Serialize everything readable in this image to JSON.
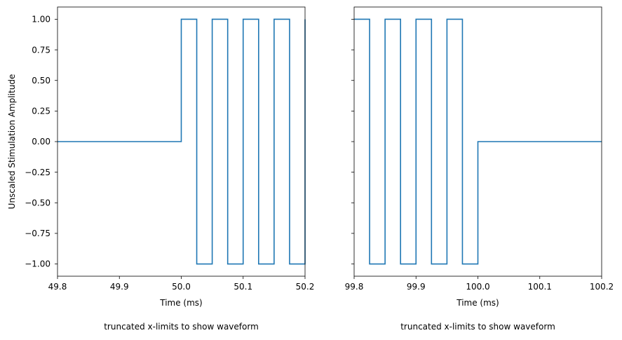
{
  "chart_data": [
    {
      "type": "line",
      "title": "",
      "xlabel": "Time (ms)",
      "ylabel": "Unscaled Stimulation Amplitude",
      "caption": "truncated x-limits to show waveform",
      "xlim": [
        49.8,
        50.2
      ],
      "ylim": [
        -1.1,
        1.1
      ],
      "xticks": [
        "49.8",
        "49.9",
        "50.0",
        "50.1",
        "50.2"
      ],
      "xtick_values": [
        49.8,
        49.9,
        50.0,
        50.1,
        50.2
      ],
      "yticks": [
        "1.00",
        "0.75",
        "0.50",
        "0.25",
        "0.00",
        "−0.25",
        "−0.50",
        "−0.75",
        "−1.00"
      ],
      "ytick_values": [
        1.0,
        0.75,
        0.5,
        0.25,
        0.0,
        -0.25,
        -0.5,
        -0.75,
        -1.0
      ],
      "grid": false,
      "series": [
        {
          "color": "#1f77b4",
          "x": [
            49.8,
            50.0,
            50.0,
            50.025,
            50.025,
            50.05,
            50.05,
            50.075,
            50.075,
            50.1,
            50.1,
            50.125,
            50.125,
            50.15,
            50.15,
            50.175,
            50.175,
            50.2,
            50.2
          ],
          "y": [
            0,
            0,
            1,
            1,
            -1,
            -1,
            1,
            1,
            -1,
            -1,
            1,
            1,
            -1,
            -1,
            1,
            1,
            -1,
            -1,
            1
          ]
        }
      ]
    },
    {
      "type": "line",
      "title": "",
      "xlabel": "Time (ms)",
      "ylabel": "",
      "caption": "truncated x-limits to show waveform",
      "xlim": [
        99.8,
        100.2
      ],
      "ylim": [
        -1.1,
        1.1
      ],
      "xticks": [
        "99.8",
        "99.9",
        "100.0",
        "100.1",
        "100.2"
      ],
      "xtick_values": [
        99.8,
        99.9,
        100.0,
        100.1,
        100.2
      ],
      "yticks": [],
      "ytick_values": [
        1.0,
        0.75,
        0.5,
        0.25,
        0.0,
        -0.25,
        -0.5,
        -0.75,
        -1.0
      ],
      "grid": false,
      "series": [
        {
          "color": "#1f77b4",
          "x": [
            99.8,
            99.825,
            99.825,
            99.85,
            99.85,
            99.875,
            99.875,
            99.9,
            99.9,
            99.925,
            99.925,
            99.95,
            99.95,
            99.975,
            99.975,
            100.0,
            100.0,
            100.2
          ],
          "y": [
            1,
            1,
            -1,
            -1,
            1,
            1,
            -1,
            -1,
            1,
            1,
            -1,
            -1,
            1,
            1,
            -1,
            -1,
            0,
            0
          ]
        }
      ]
    }
  ]
}
